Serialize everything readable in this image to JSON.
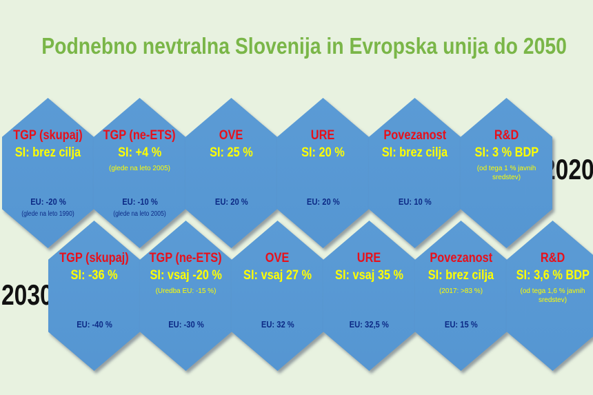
{
  "title": "Podnebno nevtralna Slovenija in Evropska unija do 2050",
  "year_top": "2020",
  "year_bottom": "2030",
  "row_2020": [
    {
      "head": "TGP (skupaj)",
      "si": "SI: brez cilja",
      "note": "",
      "eu": "EU: -20 %",
      "eu_note": "(glede na leto 1990)"
    },
    {
      "head": "TGP (ne-ETS)",
      "si": "SI: +4 %",
      "note": "(glede na leto 2005)",
      "eu": "EU: -10 %",
      "eu_note": "(glede na leto 2005)"
    },
    {
      "head": "OVE",
      "si": "SI: 25 %",
      "note": "",
      "eu": "EU: 20 %",
      "eu_note": ""
    },
    {
      "head": "URE",
      "si": "SI: 20 %",
      "note": "",
      "eu": "EU: 20 %",
      "eu_note": ""
    },
    {
      "head": "Povezanost",
      "si": "SI: brez cilja",
      "note": "",
      "eu": "EU: 10 %",
      "eu_note": ""
    },
    {
      "head": "R&D",
      "si": "SI: 3 % BDP",
      "note": "(od tega 1 % javnih sredstev)",
      "eu": "",
      "eu_note": ""
    }
  ],
  "row_2030": [
    {
      "head": "TGP (skupaj)",
      "si": "SI: -36 %",
      "note": "",
      "eu": "EU: -40 %",
      "eu_note": ""
    },
    {
      "head": "TGP (ne-ETS)",
      "si": "SI: vsaj -20 %",
      "note": "(Uredba EU: -15 %)",
      "eu": "EU: -30 %",
      "eu_note": ""
    },
    {
      "head": "OVE",
      "si": "SI: vsaj 27 %",
      "note": "",
      "eu": "EU: 32 %",
      "eu_note": ""
    },
    {
      "head": "URE",
      "si": "SI: vsaj 35 %",
      "note": "",
      "eu": "EU: 32,5 %",
      "eu_note": ""
    },
    {
      "head": "Povezanost",
      "si": "SI: brez cilja",
      "note": "(2017: >83 %)",
      "eu": "EU: 15 %",
      "eu_note": ""
    },
    {
      "head": "R&D",
      "si": "SI: 3,6 % BDP",
      "note": "(od tega 1,6 % javnih sredstev)",
      "eu": "",
      "eu_note": ""
    }
  ],
  "colors": {
    "background": "#e8f2e0",
    "title": "#7ab648",
    "hexagon": "#5b9bd5",
    "head": "#e8101a",
    "si": "#ffff00",
    "eu": "#0c2a86"
  }
}
